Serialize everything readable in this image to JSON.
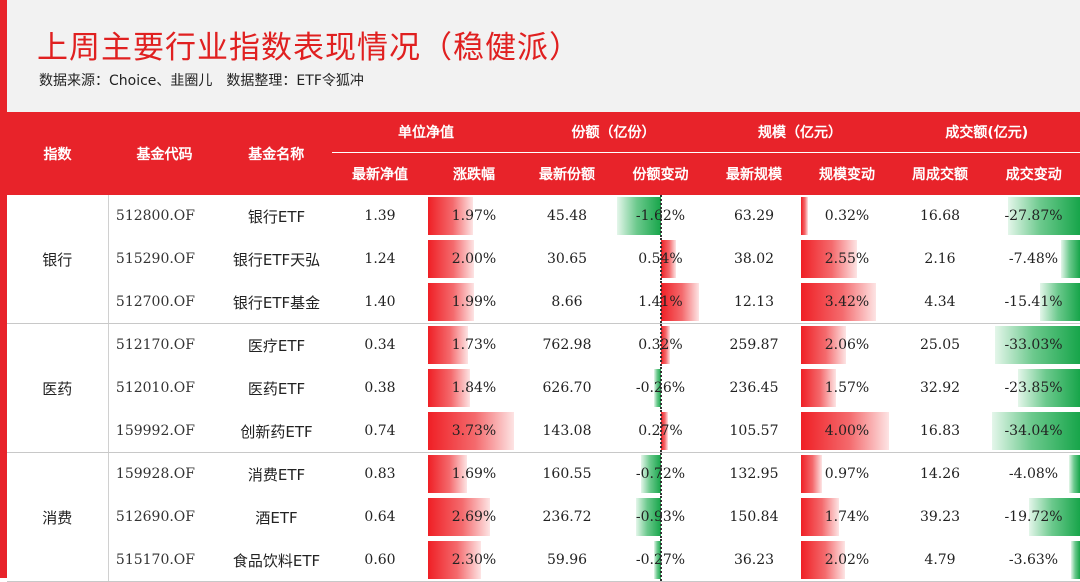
{
  "header": {
    "title": "上周主要行业指数表现情况（稳健派）",
    "source": "数据来源：Choice、韭圈儿",
    "compiler": "数据整理：ETF令狐冲"
  },
  "table": {
    "col_index": "指数",
    "col_code": "基金代码",
    "col_name": "基金名称",
    "groups": {
      "nav": "单位净值",
      "shares": "份额（亿份）",
      "scale": "规模（亿元）",
      "turnover": "成交额(亿元)"
    },
    "sub": {
      "nav_latest": "最新净值",
      "nav_change": "涨跌幅",
      "shares_latest": "最新份额",
      "shares_change": "份额变动",
      "scale_latest": "最新规模",
      "scale_change": "规模变动",
      "turnover_week": "周成交额",
      "turnover_change": "成交变动"
    },
    "sectors": [
      "银行",
      "医药",
      "消费"
    ],
    "rows": [
      {
        "code": "512800.OF",
        "name": "银行ETF",
        "nav": "1.39",
        "nav_chg": "1.97%",
        "nav_chg_v": 1.97,
        "shares": "45.48",
        "shares_chg": "-1.62%",
        "shares_chg_v": -1.62,
        "scale": "63.29",
        "scale_chg": "0.32%",
        "scale_chg_v": 0.32,
        "turnover": "16.68",
        "turnover_chg": "-27.87%",
        "turnover_chg_v": -27.87
      },
      {
        "code": "515290.OF",
        "name": "银行ETF天弘",
        "nav": "1.24",
        "nav_chg": "2.00%",
        "nav_chg_v": 2.0,
        "shares": "30.65",
        "shares_chg": "0.54%",
        "shares_chg_v": 0.54,
        "scale": "38.02",
        "scale_chg": "2.55%",
        "scale_chg_v": 2.55,
        "turnover": "2.16",
        "turnover_chg": "-7.48%",
        "turnover_chg_v": -7.48
      },
      {
        "code": "512700.OF",
        "name": "银行ETF基金",
        "nav": "1.40",
        "nav_chg": "1.99%",
        "nav_chg_v": 1.99,
        "shares": "8.66",
        "shares_chg": "1.41%",
        "shares_chg_v": 1.41,
        "scale": "12.13",
        "scale_chg": "3.42%",
        "scale_chg_v": 3.42,
        "turnover": "4.34",
        "turnover_chg": "-15.41%",
        "turnover_chg_v": -15.41
      },
      {
        "code": "512170.OF",
        "name": "医疗ETF",
        "nav": "0.34",
        "nav_chg": "1.73%",
        "nav_chg_v": 1.73,
        "shares": "762.98",
        "shares_chg": "0.32%",
        "shares_chg_v": 0.32,
        "scale": "259.87",
        "scale_chg": "2.06%",
        "scale_chg_v": 2.06,
        "turnover": "25.05",
        "turnover_chg": "-33.03%",
        "turnover_chg_v": -33.03
      },
      {
        "code": "512010.OF",
        "name": "医药ETF",
        "nav": "0.38",
        "nav_chg": "1.84%",
        "nav_chg_v": 1.84,
        "shares": "626.70",
        "shares_chg": "-0.26%",
        "shares_chg_v": -0.26,
        "scale": "236.45",
        "scale_chg": "1.57%",
        "scale_chg_v": 1.57,
        "turnover": "32.92",
        "turnover_chg": "-23.85%",
        "turnover_chg_v": -23.85
      },
      {
        "code": "159992.OF",
        "name": "创新药ETF",
        "nav": "0.74",
        "nav_chg": "3.73%",
        "nav_chg_v": 3.73,
        "shares": "143.08",
        "shares_chg": "0.27%",
        "shares_chg_v": 0.27,
        "scale": "105.57",
        "scale_chg": "4.00%",
        "scale_chg_v": 4.0,
        "turnover": "16.83",
        "turnover_chg": "-34.04%",
        "turnover_chg_v": -34.04
      },
      {
        "code": "159928.OF",
        "name": "消费ETF",
        "nav": "0.83",
        "nav_chg": "1.69%",
        "nav_chg_v": 1.69,
        "shares": "160.55",
        "shares_chg": "-0.72%",
        "shares_chg_v": -0.72,
        "scale": "132.95",
        "scale_chg": "0.97%",
        "scale_chg_v": 0.97,
        "turnover": "14.26",
        "turnover_chg": "-4.08%",
        "turnover_chg_v": -4.08
      },
      {
        "code": "512690.OF",
        "name": "酒ETF",
        "nav": "0.64",
        "nav_chg": "2.69%",
        "nav_chg_v": 2.69,
        "shares": "236.72",
        "shares_chg": "-0.93%",
        "shares_chg_v": -0.93,
        "scale": "150.84",
        "scale_chg": "1.74%",
        "scale_chg_v": 1.74,
        "turnover": "39.23",
        "turnover_chg": "-19.72%",
        "turnover_chg_v": -19.72
      },
      {
        "code": "515170.OF",
        "name": "食品饮料ETF",
        "nav": "0.60",
        "nav_chg": "2.30%",
        "nav_chg_v": 2.3,
        "shares": "59.96",
        "shares_chg": "-0.27%",
        "shares_chg_v": -0.27,
        "scale": "36.23",
        "scale_chg": "2.02%",
        "scale_chg_v": 2.02,
        "turnover": "4.79",
        "turnover_chg": "-3.63%",
        "turnover_chg_v": -3.63
      }
    ]
  },
  "colors": {
    "accent_red": "#e8232a",
    "positive_bar": "#ef1f25",
    "negative_bar": "#17a54a"
  }
}
